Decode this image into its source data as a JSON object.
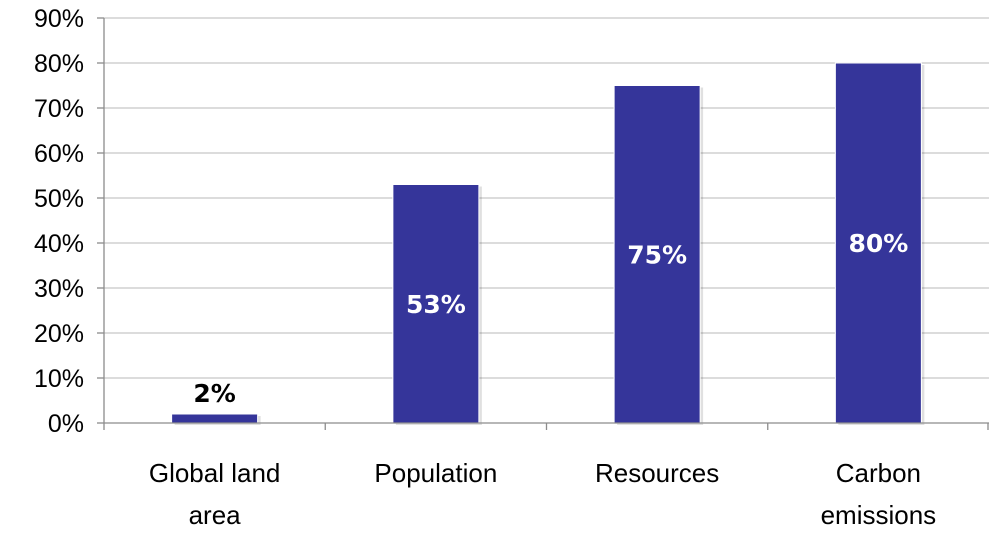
{
  "chart_data": {
    "type": "bar",
    "categories": [
      [
        "Global land",
        "area"
      ],
      [
        "Population"
      ],
      [
        "Resources"
      ],
      [
        "Carbon",
        "emissions"
      ]
    ],
    "values": [
      2,
      53,
      75,
      80
    ],
    "data_labels": [
      "2%",
      "53%",
      "75%",
      "80%"
    ],
    "y_ticks": [
      "0%",
      "10%",
      "20%",
      "30%",
      "40%",
      "50%",
      "60%",
      "70%",
      "80%",
      "90%"
    ],
    "ylim": [
      0,
      90
    ],
    "grid": true,
    "legend": "none",
    "title": "",
    "xlabel": "",
    "ylabel": ""
  },
  "colors": {
    "bar": "#35359A",
    "grid": "#C8C8C8",
    "axis": "#8C8C8C",
    "label_inside": "#FFFFFF",
    "label_outside": "#000000"
  }
}
